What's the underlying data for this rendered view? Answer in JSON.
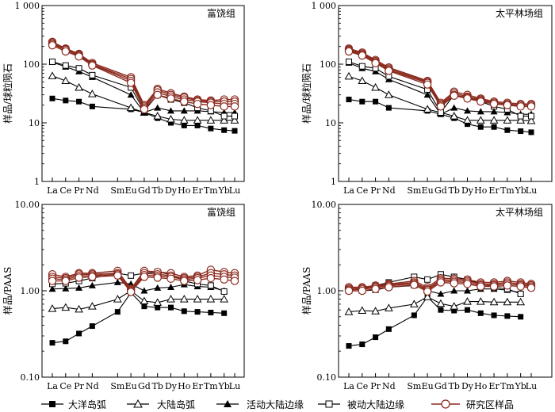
{
  "legend": [
    {
      "key": "ocean",
      "label": "大洋岛弧",
      "marker": "filled-square"
    },
    {
      "key": "contarc",
      "label": "大陆岛弧",
      "marker": "open-triangle"
    },
    {
      "key": "active",
      "label": "活动大陆边缘",
      "marker": "filled-triangle"
    },
    {
      "key": "passive",
      "label": "被动大陆边缘",
      "marker": "open-square"
    },
    {
      "key": "study",
      "label": "研究区样品",
      "marker": "open-circle"
    }
  ],
  "colors": {
    "reference": "#000000",
    "study": "#8b2a1e"
  },
  "chart_data": [
    {
      "type": "line",
      "title": "富饶组",
      "ylabel": "样品/球粒陨石",
      "yscale": "log",
      "ylim": [
        1,
        1000
      ],
      "yticks": [
        1,
        10,
        100,
        1000
      ],
      "ytick_labels": [
        "1",
        "10",
        "100",
        "1 000"
      ],
      "categories": [
        "La",
        "Ce",
        "Pr",
        "Nd",
        "Sm",
        "Eu",
        "Gd",
        "Tb",
        "Dy",
        "Ho",
        "Er",
        "Tm",
        "Yb",
        "Lu"
      ],
      "series": [
        {
          "name": "大洋岛弧",
          "values": [
            26,
            24,
            23,
            19,
            null,
            17,
            15,
            12,
            10,
            9,
            9,
            8,
            7.5,
            7.3
          ]
        },
        {
          "name": "大陆岛弧",
          "values": [
            63,
            52,
            40,
            31,
            null,
            18,
            15,
            13,
            11.5,
            11,
            11,
            11,
            11,
            11
          ]
        },
        {
          "name": "活动大陆边缘",
          "values": [
            108,
            90,
            75,
            60,
            null,
            30,
            15,
            18,
            16,
            16,
            16,
            15.5,
            15,
            15
          ]
        },
        {
          "name": "被动大陆边缘",
          "values": [
            110,
            95,
            85,
            65,
            null,
            40,
            16,
            30,
            25,
            22,
            18,
            16,
            13,
            13
          ]
        },
        {
          "name": "研究区样品",
          "values": [
            [
              240,
              185,
              150,
              105,
              null,
              60,
              20,
              38,
              32,
              28,
              25,
              24,
              25,
              25
            ],
            [
              230,
              180,
              145,
              100,
              null,
              56,
              19,
              36,
              30,
              27,
              24,
              23,
              23,
              23
            ],
            [
              220,
              175,
              140,
              98,
              null,
              52,
              18,
              33,
              28,
              25,
              23,
              22,
              21,
              21
            ],
            [
              210,
              165,
              135,
              95,
              null,
              48,
              17,
              30,
              26,
              23,
              21,
              20,
              19,
              19
            ]
          ]
        }
      ]
    },
    {
      "type": "line",
      "title": "太平林场组",
      "ylabel": "样品/球粒陨石",
      "yscale": "log",
      "ylim": [
        1,
        1000
      ],
      "yticks": [
        1,
        10,
        100,
        1000
      ],
      "ytick_labels": [
        "1",
        "10",
        "100",
        "1 000"
      ],
      "categories": [
        "La",
        "Ce",
        "Pr",
        "Nd",
        "Sm",
        "Eu",
        "Gd",
        "Tb",
        "Dy",
        "Ho",
        "Er",
        "Tm",
        "Yb",
        "Lu"
      ],
      "series": [
        {
          "name": "大洋岛弧",
          "values": [
            25,
            23,
            23,
            18,
            null,
            16,
            14,
            12,
            9.5,
            8.5,
            8.5,
            7.5,
            7.2,
            6.9
          ]
        },
        {
          "name": "大陆岛弧",
          "values": [
            62,
            52,
            40,
            30,
            null,
            17,
            15,
            13,
            11,
            11,
            11,
            11,
            11,
            10.8
          ]
        },
        {
          "name": "活动大陆边缘",
          "values": [
            105,
            85,
            75,
            55,
            null,
            30,
            14,
            18,
            16,
            15.5,
            15.5,
            15,
            14,
            14
          ]
        },
        {
          "name": "被动大陆边缘",
          "values": [
            110,
            92,
            85,
            62,
            null,
            37,
            15,
            30,
            26,
            23,
            19,
            17,
            13,
            13
          ]
        },
        {
          "name": "研究区样品",
          "values": [
            [
              185,
              158,
              118,
              88,
              null,
              52,
              22,
              34,
              30,
              26,
              23,
              22,
              21,
              21
            ],
            [
              178,
              152,
              113,
              84,
              null,
              50,
              21,
              32,
              28,
              25,
              22,
              21,
              20,
              20
            ],
            [
              172,
              146,
              108,
              80,
              null,
              48,
              20,
              30,
              27,
              24,
              21,
              20,
              20,
              20
            ],
            [
              165,
              140,
              104,
              77,
              null,
              45,
              19,
              29,
              26,
              23,
              21,
              20,
              19,
              19
            ]
          ]
        }
      ]
    },
    {
      "type": "line",
      "title": "富饶组",
      "ylabel": "样品/PAAS",
      "yscale": "log",
      "ylim": [
        0.1,
        10
      ],
      "yticks": [
        0.1,
        1,
        10
      ],
      "ytick_labels": [
        "0.10",
        "1.00",
        "10.00"
      ],
      "categories": [
        "La",
        "Ce",
        "Pr",
        "Nd",
        "Sm",
        "Eu",
        "Gd",
        "Tb",
        "Dy",
        "Ho",
        "Er",
        "Tm",
        "Yb",
        "Lu"
      ],
      "series": [
        {
          "name": "大洋岛弧",
          "values": [
            0.25,
            0.26,
            0.32,
            0.39,
            0.57,
            0.95,
            0.66,
            0.64,
            0.64,
            0.58,
            0.57,
            0.56,
            0.55,
            null
          ]
        },
        {
          "name": "大陆岛弧",
          "values": [
            0.62,
            0.64,
            0.61,
            0.66,
            0.8,
            1.0,
            0.76,
            0.73,
            0.8,
            0.8,
            0.8,
            0.8,
            0.8,
            null
          ]
        },
        {
          "name": "活动大陆边缘",
          "values": [
            1.05,
            1.06,
            1.08,
            1.15,
            1.25,
            1.2,
            1.0,
            1.08,
            1.1,
            1.18,
            1.12,
            1.1,
            1.0,
            null
          ]
        },
        {
          "name": "被动大陆边缘",
          "values": [
            1.2,
            1.22,
            1.3,
            1.4,
            1.6,
            1.5,
            1.6,
            1.65,
            1.55,
            1.3,
            1.2,
            1.15,
            0.98,
            null
          ]
        },
        {
          "name": "研究区样品",
          "values": [
            [
              1.55,
              1.45,
              1.6,
              1.6,
              1.7,
              1.05,
              1.7,
              1.65,
              1.6,
              1.45,
              1.5,
              1.75,
              1.65,
              1.6
            ],
            [
              1.45,
              1.4,
              1.55,
              1.55,
              1.6,
              1.02,
              1.6,
              1.55,
              1.5,
              1.4,
              1.45,
              1.6,
              1.55,
              1.5
            ],
            [
              1.38,
              1.35,
              1.48,
              1.5,
              1.55,
              1.0,
              1.52,
              1.48,
              1.45,
              1.35,
              1.4,
              1.5,
              1.45,
              1.42
            ],
            [
              1.3,
              1.3,
              1.42,
              1.45,
              1.5,
              0.97,
              1.45,
              1.42,
              1.38,
              1.3,
              1.33,
              1.4,
              1.35,
              1.3
            ]
          ]
        }
      ]
    },
    {
      "type": "line",
      "title": "太平林场组",
      "ylabel": "样品/PAAS",
      "yscale": "log",
      "ylim": [
        0.1,
        10
      ],
      "yticks": [
        0.1,
        1,
        10
      ],
      "ytick_labels": [
        "0.10",
        "1.00",
        "10.00"
      ],
      "categories": [
        "La",
        "Ce",
        "Pr",
        "Nd",
        "Sm",
        "Eu",
        "Gd",
        "Tb",
        "Dy",
        "Ho",
        "Er",
        "Tm",
        "Yb",
        "Lu"
      ],
      "series": [
        {
          "name": "大洋岛弧",
          "values": [
            0.23,
            0.24,
            0.29,
            0.36,
            0.52,
            0.85,
            0.6,
            0.59,
            0.6,
            0.55,
            0.52,
            0.51,
            0.5,
            null
          ]
        },
        {
          "name": "大陆岛弧",
          "values": [
            0.57,
            0.59,
            0.58,
            0.63,
            0.7,
            0.85,
            0.71,
            0.66,
            0.75,
            0.75,
            0.74,
            0.74,
            0.74,
            null
          ]
        },
        {
          "name": "活动大陆边缘",
          "values": [
            1.0,
            1.0,
            1.02,
            1.1,
            1.15,
            1.0,
            0.92,
            1.0,
            1.0,
            1.05,
            1.05,
            1.02,
            0.95,
            null
          ]
        },
        {
          "name": "被动大陆边缘",
          "values": [
            1.02,
            1.05,
            1.15,
            1.25,
            1.45,
            1.35,
            1.55,
            1.45,
            1.35,
            1.2,
            1.1,
            1.05,
            0.92,
            null
          ]
        },
        {
          "name": "研究区样品",
          "values": [
            [
              1.1,
              1.1,
              1.15,
              1.2,
              1.3,
              1.1,
              1.4,
              1.38,
              1.35,
              1.25,
              1.25,
              1.3,
              1.25,
              1.2
            ],
            [
              1.06,
              1.07,
              1.12,
              1.17,
              1.25,
              1.05,
              1.35,
              1.32,
              1.3,
              1.2,
              1.2,
              1.25,
              1.2,
              1.16
            ],
            [
              1.03,
              1.04,
              1.09,
              1.14,
              1.21,
              1.02,
              1.3,
              1.27,
              1.25,
              1.16,
              1.16,
              1.2,
              1.16,
              1.12
            ],
            [
              1.0,
              1.0,
              1.05,
              1.1,
              1.17,
              0.98,
              1.25,
              1.22,
              1.2,
              1.12,
              1.12,
              1.15,
              1.12,
              1.08
            ]
          ]
        }
      ]
    }
  ]
}
